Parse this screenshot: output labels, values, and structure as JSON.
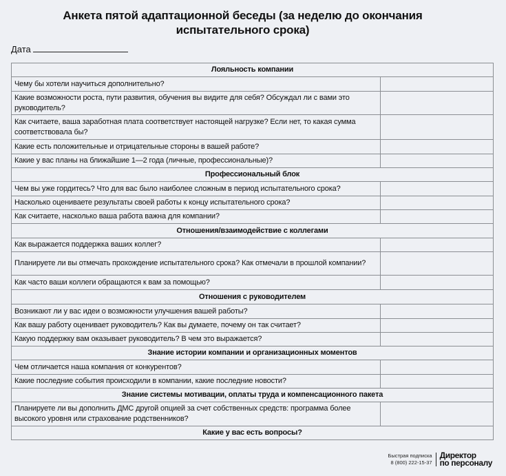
{
  "title_lines": [
    "Анкета пятой адаптационной беседы (за неделю до окончания",
    "испытательного срока)"
  ],
  "date_label": "Дата",
  "rows": [
    {
      "type": "section",
      "text": "Лояльность компании",
      "h": 20
    },
    {
      "type": "q",
      "text": "Чему бы хотели научиться дополнительно?",
      "h": 21
    },
    {
      "type": "q",
      "text": "Какие возможности роста, пути развития, обучения вы видите для себя? Обсуждал ли с вами это руководитель?",
      "h": 34
    },
    {
      "type": "q",
      "text": "Как считаете, ваша заработная плата соответствует настоящей нагрузке? Если нет, то какая сумма соответствовала бы?",
      "h": 36
    },
    {
      "type": "q",
      "text": "Какие есть положительные и отрицательные стороны в вашей работе?",
      "h": 21
    },
    {
      "type": "q",
      "text": "Какие у вас планы на ближайшие 1—2 года (личные, профессиональные)?",
      "h": 20
    },
    {
      "type": "section",
      "text": "Профессиональный блок",
      "h": 20
    },
    {
      "type": "q",
      "text": "Чем вы уже гордитесь? Что для вас было наиболее сложным в период испытательного срока?",
      "h": 21
    },
    {
      "type": "q",
      "text": "Насколько оцениваете результаты своей работы к концу испытательного срока?",
      "h": 20
    },
    {
      "type": "q",
      "text": "Как считаете, насколько ваша работа важна для компании?",
      "h": 20
    },
    {
      "type": "section",
      "text": "Отношения/взаимодействие с коллегами",
      "h": 21
    },
    {
      "type": "q",
      "text": "Как выражается поддержка ваших коллег?",
      "h": 20
    },
    {
      "type": "q",
      "text": "Планируете ли вы отмечать прохождение испытательного срока? Как отмечали в прошлой компании?",
      "h": 34
    },
    {
      "type": "q",
      "text": "Как часто ваши коллеги обращаются к вам за помощью?",
      "h": 21
    },
    {
      "type": "section",
      "text": "Отношения с руководителем",
      "h": 21
    },
    {
      "type": "q",
      "text": "Возникают ли у вас идеи о возможности улучшения вашей работы?",
      "h": 21
    },
    {
      "type": "q",
      "text": "Как вашу работу оценивает руководитель? Как вы думаете, почему он так считает?",
      "h": 20
    },
    {
      "type": "q",
      "text": "Какую поддержку вам оказывает руководитель? В чем это выражается?",
      "h": 20
    },
    {
      "type": "section",
      "text": "Знание истории компании и организационных моментов",
      "h": 20
    },
    {
      "type": "q",
      "text": "Чем отличается наша компания от конкурентов?",
      "h": 21
    },
    {
      "type": "q",
      "text": "Какие последние события происходили в компании, какие последние новости?",
      "h": 20
    },
    {
      "type": "section",
      "text": "Знание системы мотивации, оплаты труда и компенсационного пакета",
      "h": 20
    },
    {
      "type": "q",
      "text": "Планируете ли вы дополнить ДМС другой опцией за счет собственных средств: программа более высокого уровня или страхование родственников?",
      "h": 35
    },
    {
      "type": "section",
      "text": "Какие у вас есть вопросы?",
      "h": 20
    }
  ],
  "footer": {
    "subscribe_label": "Быстрая подписка",
    "phone": "8 (800) 222-15-37",
    "logo_lines": [
      "Директор",
      "по персоналу"
    ]
  }
}
